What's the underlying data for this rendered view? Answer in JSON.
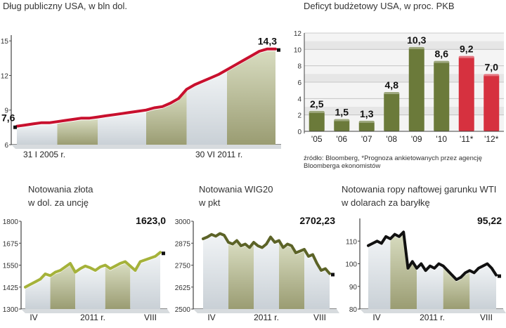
{
  "chart_data": [
    {
      "type": "area",
      "title": "Dług publiczny USA, w bln dol.",
      "ylim": [
        6,
        15.5
      ],
      "yticks": [
        6,
        9,
        12,
        15
      ],
      "x_labels": [
        "31 I 2005 r.",
        "30 VI 2011 r."
      ],
      "start_label": "7,6",
      "end_label": "14,3",
      "colors": {
        "line": "#c8102e"
      },
      "values": [
        7.6,
        7.7,
        7.8,
        7.9,
        7.9,
        8.0,
        8.1,
        8.2,
        8.3,
        8.3,
        8.4,
        8.5,
        8.6,
        8.7,
        8.8,
        8.9,
        9.0,
        9.2,
        9.3,
        9.6,
        10.0,
        10.8,
        11.2,
        11.5,
        11.8,
        12.1,
        12.5,
        12.9,
        13.3,
        13.7,
        14.1,
        14.3,
        14.3
      ]
    },
    {
      "type": "bar",
      "title": "Deficyt budżetowy USA, w proc. PKB",
      "categories": [
        "'05",
        "'06",
        "'07",
        "'08",
        "'09",
        "'10",
        "'11*",
        "'12*"
      ],
      "values": [
        2.5,
        1.5,
        1.3,
        4.8,
        10.3,
        8.6,
        9.2,
        7.0
      ],
      "value_labels": [
        "2,5",
        "1,5",
        "1,3",
        "4,8",
        "10,3",
        "8,6",
        "9,2",
        "7,0"
      ],
      "ylim": [
        0,
        12
      ],
      "yticks": [
        0,
        2,
        4,
        6,
        8,
        10,
        12
      ],
      "colors": {
        "actual": "#6b7a3a",
        "forecast": "#d6313f"
      },
      "forecast_from_index": 6
    },
    {
      "type": "line",
      "title": "Notowania złota",
      "subtitle": "w dol. za uncję",
      "ylim": [
        1300,
        1800
      ],
      "yticks": [
        1300,
        1425,
        1550,
        1675,
        1800
      ],
      "x_labels": [
        "IV",
        "2011 r.",
        "VIII"
      ],
      "end_label": "1623,0",
      "colors": {
        "line": "#a5b23a"
      },
      "values": [
        1425,
        1440,
        1455,
        1470,
        1500,
        1490,
        1510,
        1520,
        1540,
        1560,
        1510,
        1530,
        1545,
        1535,
        1520,
        1540,
        1550,
        1530,
        1545,
        1560,
        1570,
        1545,
        1520,
        1570,
        1580,
        1590,
        1600,
        1623
      ]
    },
    {
      "type": "line",
      "title": "Notowania WIG20",
      "subtitle": "w pkt",
      "ylim": [
        2500,
        3000
      ],
      "yticks": [
        2500,
        2625,
        2750,
        2875,
        3000
      ],
      "x_labels": [
        "IV",
        "2011 r.",
        "VIII"
      ],
      "end_label": "2702,23",
      "colors": {
        "line": "#5c6327"
      },
      "values": [
        2900,
        2910,
        2925,
        2915,
        2930,
        2920,
        2880,
        2870,
        2890,
        2860,
        2870,
        2850,
        2880,
        2860,
        2850,
        2870,
        2910,
        2880,
        2890,
        2850,
        2870,
        2860,
        2820,
        2830,
        2840,
        2800,
        2810,
        2760,
        2720,
        2730,
        2702
      ]
    },
    {
      "type": "line",
      "title": "Notowania ropy naftowej garunku WTI",
      "subtitle": "w dolarach za baryłkę",
      "ylim": [
        80,
        120
      ],
      "yticks": [
        80,
        90,
        100,
        110
      ],
      "x_labels": [
        "IV",
        "2011 r.",
        "VIII"
      ],
      "end_label": "95,22",
      "colors": {
        "line": "#111111"
      },
      "values": [
        108,
        109,
        110,
        109,
        112,
        111,
        113,
        112,
        114,
        98,
        101,
        98,
        100,
        97,
        99,
        98,
        100,
        99,
        97,
        95,
        93,
        94,
        96,
        97,
        96,
        98,
        99,
        100,
        98,
        95
      ]
    }
  ],
  "source_text": "źródło: Bloomberg, *Prognoza ankietowanych przez agencję Bloomberga ekonomistów"
}
